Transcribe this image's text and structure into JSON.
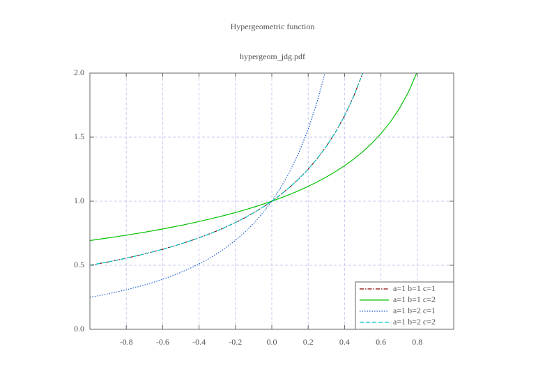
{
  "chart_data": {
    "type": "line",
    "title": "Hypergeometric function",
    "subtitle": "hypergeom_jdg.pdf",
    "x": [
      -1,
      -0.95,
      -0.9,
      -0.85,
      -0.8,
      -0.75,
      -0.7,
      -0.65,
      -0.6,
      -0.55,
      -0.5,
      -0.45,
      -0.4,
      -0.35,
      -0.3,
      -0.25,
      -0.2,
      -0.15,
      -0.1,
      -0.05,
      0,
      0.05,
      0.1,
      0.15,
      0.2,
      0.25,
      0.3,
      0.35,
      0.4,
      0.45,
      0.5,
      0.55,
      0.6,
      0.65,
      0.7,
      0.75,
      0.8
    ],
    "series": [
      {
        "name": "a=1 b=1 c=1",
        "color": "#8b0000",
        "dash": "dashdot",
        "values": [
          0.5,
          0.5128,
          0.5263,
          0.5405,
          0.5556,
          0.5714,
          0.5882,
          0.6061,
          0.625,
          0.6452,
          0.6667,
          0.6897,
          0.7143,
          0.7407,
          0.7692,
          0.8,
          0.8333,
          0.8696,
          0.9091,
          0.9524,
          1,
          1.0526,
          1.1111,
          1.1765,
          1.25,
          1.3333,
          1.4286,
          1.5385,
          1.6667,
          1.8182,
          2,
          null,
          null,
          null,
          null,
          null,
          null
        ]
      },
      {
        "name": "a=1 b=1 c=2",
        "color": "#00c000",
        "dash": "solid",
        "values": [
          0.6931,
          0.703,
          0.7132,
          0.7238,
          0.7347,
          0.7462,
          0.758,
          0.7704,
          0.7833,
          0.7969,
          0.8109,
          0.8257,
          0.8412,
          0.8575,
          0.8745,
          0.8926,
          0.9116,
          0.9317,
          0.9531,
          0.9758,
          1,
          1.0259,
          1.0536,
          1.0835,
          1.1157,
          1.1507,
          1.1889,
          1.2308,
          1.2771,
          1.3285,
          1.3863,
          1.4518,
          1.5272,
          1.6151,
          1.72,
          1.8484,
          2.0118
        ]
      },
      {
        "name": "a=1 b=2 c=1",
        "color": "#1f5fd0",
        "dash": "dotted",
        "values": [
          0.25,
          0.263,
          0.277,
          0.2922,
          0.3086,
          0.3265,
          0.346,
          0.3673,
          0.3906,
          0.4162,
          0.4444,
          0.4756,
          0.5102,
          0.5487,
          0.5917,
          0.64,
          0.6944,
          0.7561,
          0.8264,
          0.907,
          1,
          1.108,
          1.2346,
          1.3841,
          1.5625,
          1.7778,
          2.0408,
          null,
          null,
          null,
          null,
          null,
          null,
          null,
          null,
          null,
          null
        ]
      },
      {
        "name": "a=1 b=2 c=2",
        "color": "#00c8c8",
        "dash": "dashed",
        "values": [
          0.5,
          0.5128,
          0.5263,
          0.5405,
          0.5556,
          0.5714,
          0.5882,
          0.6061,
          0.625,
          0.6452,
          0.6667,
          0.6897,
          0.7143,
          0.7407,
          0.7692,
          0.8,
          0.8333,
          0.8696,
          0.9091,
          0.9524,
          1,
          1.0526,
          1.1111,
          1.1765,
          1.25,
          1.3333,
          1.4286,
          1.5385,
          1.6667,
          1.8182,
          2,
          null,
          null,
          null,
          null,
          null,
          null
        ]
      }
    ],
    "xlim": [
      -1,
      1
    ],
    "ylim": [
      0,
      2
    ],
    "xticks": [
      -0.8,
      -0.6,
      -0.4,
      -0.2,
      {
        "value": 0,
        "label": "0.0"
      },
      0.2,
      0.4,
      0.6,
      0.8
    ],
    "yticks": [
      {
        "value": 0,
        "label": "0.0"
      },
      0.5,
      {
        "value": 1,
        "label": "1.0"
      },
      1.5,
      {
        "value": 2,
        "label": "2.0"
      }
    ],
    "grid": true,
    "legend": "lower right"
  }
}
